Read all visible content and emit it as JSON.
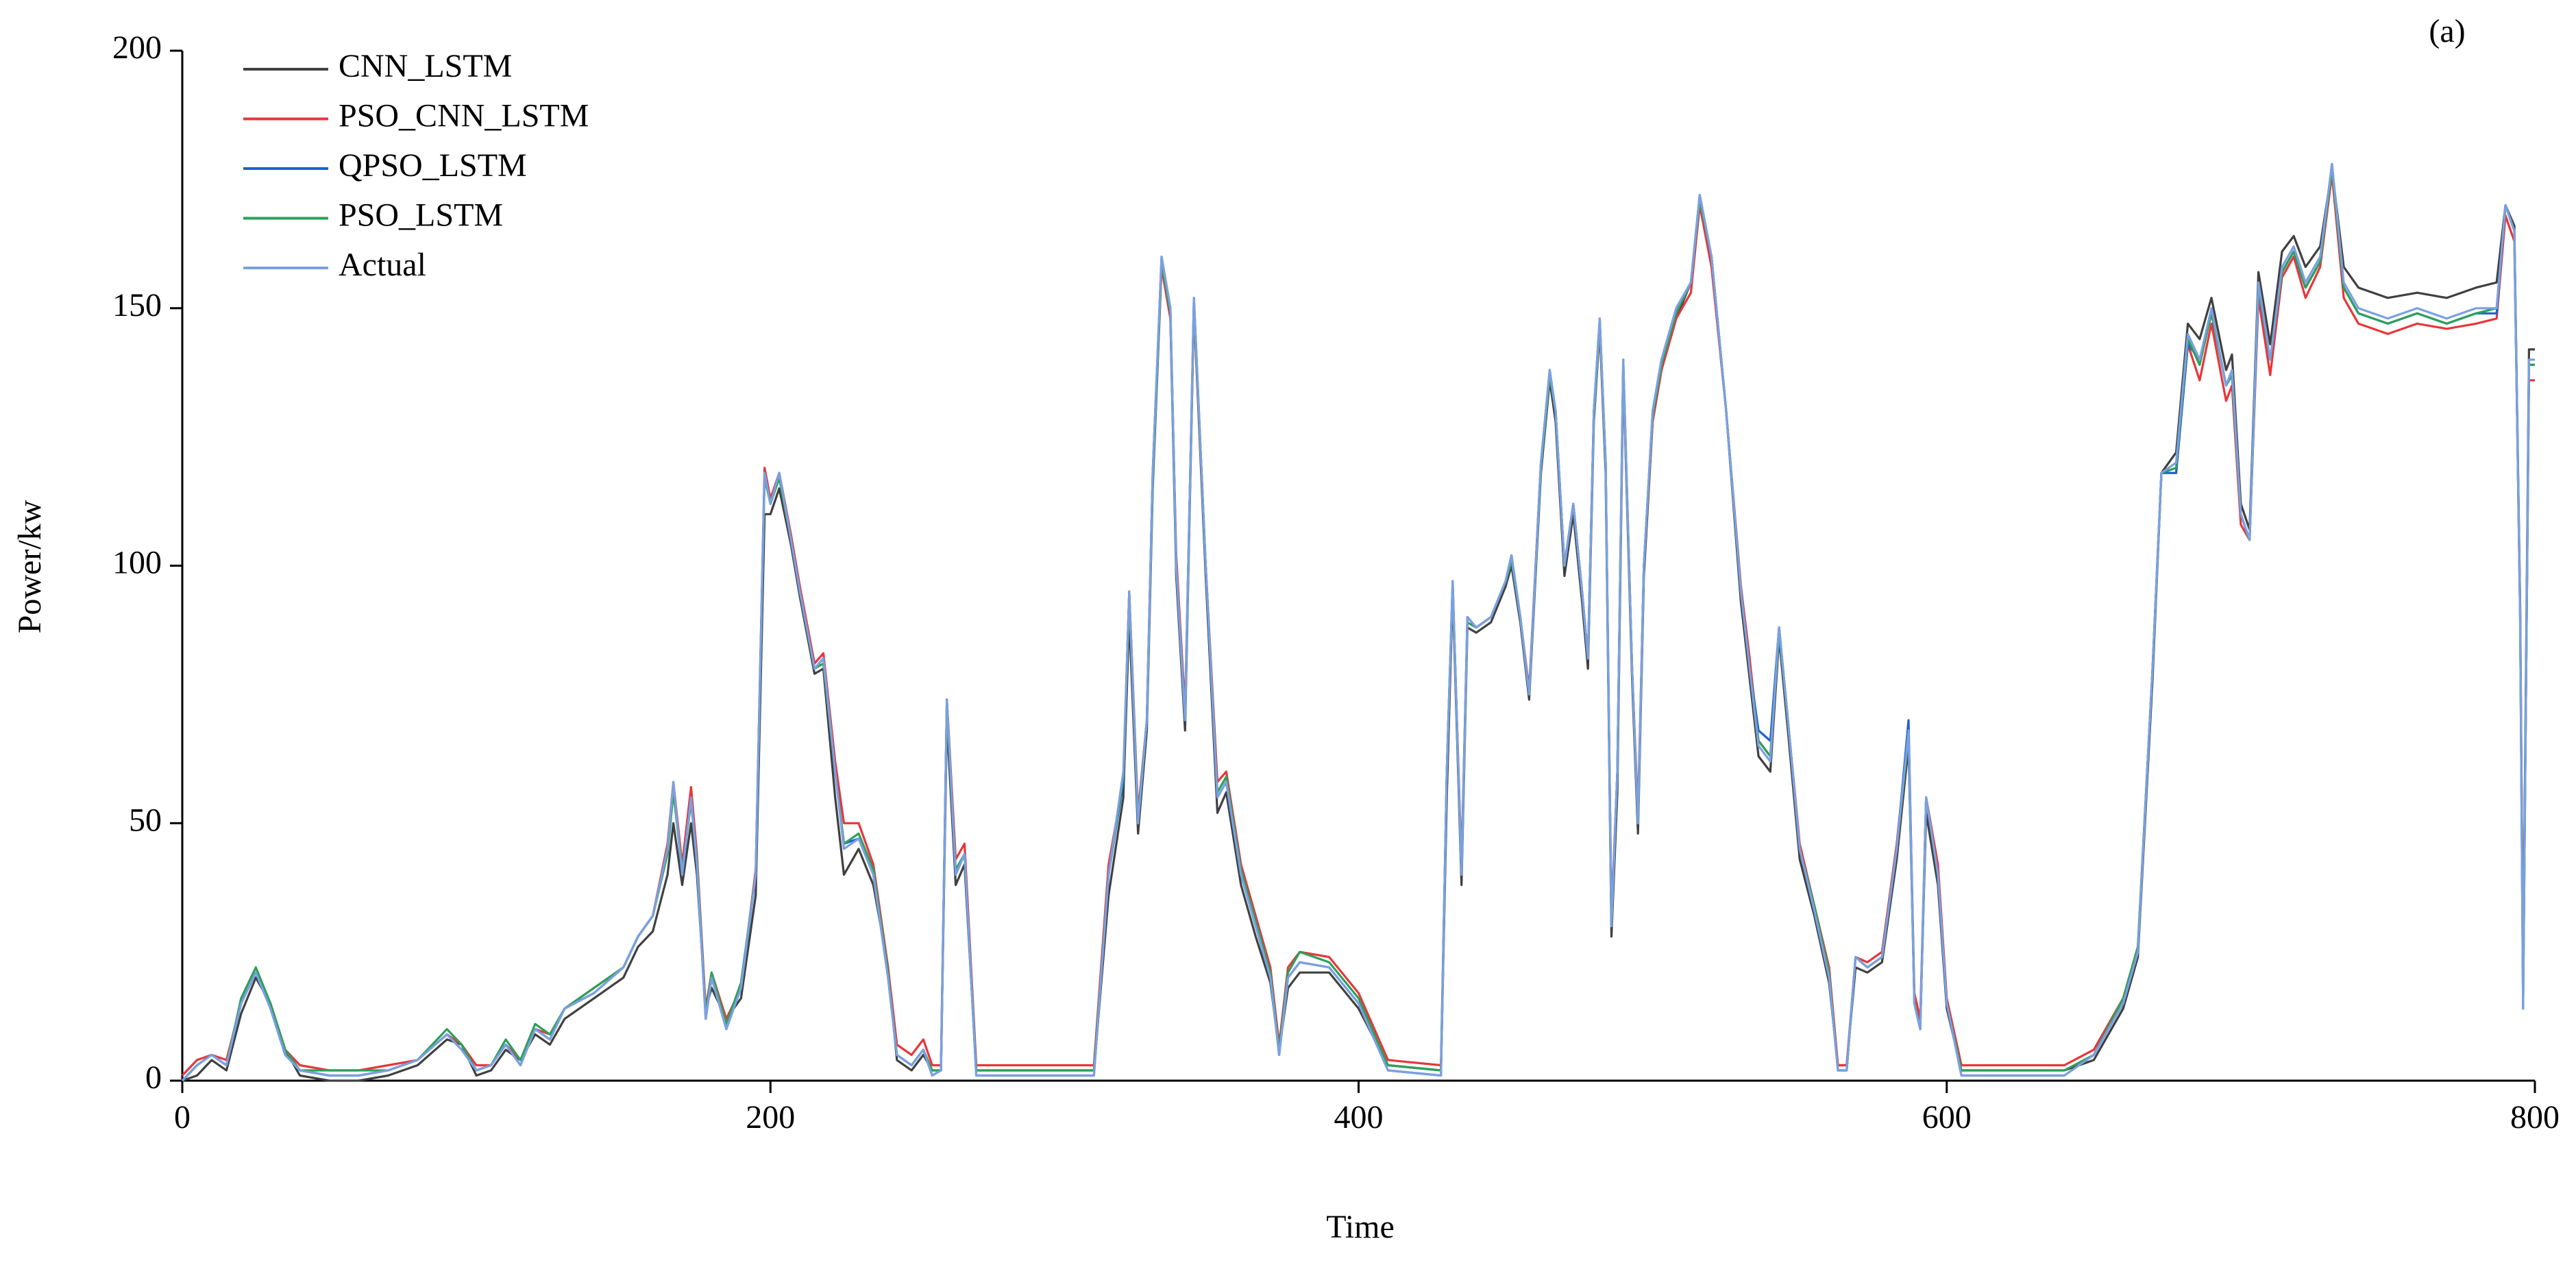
{
  "chart_data": {
    "type": "line",
    "annotation": "(a)",
    "x_label": "Time",
    "y_label": "Power/kw",
    "xlim": [
      0,
      800
    ],
    "xticks": [
      0,
      200,
      400,
      600,
      800
    ],
    "ylim": [
      0,
      200
    ],
    "yticks": [
      0,
      50,
      100,
      150,
      200
    ],
    "grid": false,
    "legend": "upper left",
    "x": [
      0,
      5,
      10,
      15,
      20,
      25,
      30,
      35,
      40,
      50,
      60,
      70,
      80,
      90,
      95,
      100,
      105,
      110,
      115,
      120,
      125,
      130,
      140,
      150,
      155,
      160,
      165,
      167,
      170,
      173,
      175,
      178,
      180,
      185,
      190,
      195,
      198,
      200,
      203,
      207,
      210,
      215,
      218,
      222,
      225,
      230,
      235,
      240,
      243,
      248,
      252,
      255,
      258,
      260,
      263,
      266,
      270,
      290,
      310,
      315,
      320,
      322,
      325,
      328,
      330,
      333,
      336,
      338,
      341,
      344,
      348,
      352,
      355,
      360,
      365,
      370,
      373,
      376,
      380,
      390,
      400,
      410,
      428,
      430,
      432,
      435,
      437,
      440,
      445,
      450,
      452,
      455,
      458,
      462,
      465,
      467,
      470,
      473,
      476,
      478,
      480,
      482,
      484,
      486,
      488,
      490,
      493,
      495,
      497,
      500,
      503,
      508,
      513,
      516,
      520,
      525,
      530,
      533,
      536,
      540,
      543,
      546,
      550,
      555,
      560,
      563,
      566,
      569,
      573,
      578,
      583,
      587,
      589,
      591,
      593,
      597,
      600,
      605,
      640,
      650,
      660,
      665,
      670,
      673,
      678,
      682,
      686,
      690,
      695,
      697,
      700,
      703,
      706,
      710,
      714,
      718,
      722,
      727,
      731,
      735,
      740,
      750,
      760,
      770,
      780,
      787,
      790,
      793,
      795,
      796,
      798,
      800
    ],
    "series": [
      {
        "name": "CNN_LSTM",
        "color": "#404040",
        "values": [
          0,
          1,
          4,
          2,
          13,
          20,
          15,
          6,
          1,
          0,
          0,
          1,
          3,
          8,
          7,
          1,
          2,
          6,
          4,
          9,
          7,
          12,
          16,
          20,
          26,
          29,
          40,
          50,
          38,
          50,
          40,
          14,
          18,
          12,
          16,
          36,
          110,
          110,
          115,
          104,
          94,
          79,
          80,
          55,
          40,
          45,
          38,
          22,
          4,
          2,
          5,
          2,
          2,
          70,
          38,
          42,
          2,
          2,
          2,
          36,
          55,
          90,
          48,
          68,
          115,
          158,
          148,
          98,
          68,
          150,
          98,
          52,
          56,
          38,
          28,
          19,
          6,
          18,
          21,
          21,
          14,
          3,
          2,
          55,
          95,
          38,
          88,
          87,
          89,
          96,
          100,
          89,
          74,
          118,
          136,
          128,
          98,
          110,
          93,
          80,
          128,
          146,
          118,
          28,
          56,
          138,
          78,
          48,
          98,
          128,
          138,
          148,
          155,
          170,
          160,
          130,
          93,
          78,
          63,
          60,
          86,
          68,
          43,
          32,
          19,
          3,
          3,
          22,
          21,
          23,
          43,
          65,
          16,
          11,
          52,
          38,
          14,
          2,
          2,
          4,
          14,
          24,
          78,
          118,
          122,
          147,
          144,
          152,
          138,
          141,
          112,
          107,
          157,
          143,
          161,
          164,
          158,
          162,
          177,
          158,
          154,
          152,
          153,
          152,
          154,
          155,
          170,
          166,
          92,
          20,
          142,
          142
        ]
      },
      {
        "name": "PSO_CNN_LSTM",
        "color": "#e8363a",
        "values": [
          1,
          4,
          5,
          4,
          15,
          21,
          15,
          6,
          3,
          2,
          2,
          3,
          4,
          9,
          7,
          3,
          3,
          7,
          4,
          10,
          9,
          14,
          18,
          22,
          28,
          32,
          46,
          58,
          42,
          57,
          44,
          14,
          21,
          12,
          18,
          41,
          119,
          113,
          118,
          106,
          96,
          81,
          83,
          62,
          50,
          50,
          42,
          22,
          7,
          5,
          8,
          3,
          3,
          74,
          43,
          46,
          3,
          3,
          3,
          42,
          58,
          95,
          52,
          70,
          118,
          158,
          148,
          102,
          72,
          150,
          100,
          58,
          60,
          42,
          32,
          22,
          7,
          22,
          25,
          24,
          17,
          4,
          3,
          60,
          96,
          42,
          90,
          88,
          90,
          97,
          102,
          90,
          76,
          120,
          137,
          130,
          100,
          112,
          95,
          82,
          130,
          146,
          120,
          32,
          60,
          138,
          80,
          52,
          100,
          128,
          138,
          148,
          153,
          170,
          158,
          130,
          96,
          82,
          66,
          63,
          88,
          70,
          46,
          34,
          22,
          3,
          3,
          24,
          23,
          25,
          46,
          68,
          17,
          12,
          55,
          42,
          16,
          3,
          3,
          6,
          16,
          26,
          80,
          118,
          118,
          143,
          136,
          147,
          132,
          135,
          108,
          105,
          152,
          137,
          156,
          160,
          152,
          158,
          176,
          152,
          147,
          145,
          147,
          146,
          147,
          148,
          168,
          163,
          92,
          18,
          136,
          136
        ]
      },
      {
        "name": "QPSO_LSTM",
        "color": "#1f5fd6",
        "values": [
          0,
          3,
          5,
          3,
          15,
          21,
          14,
          5,
          2,
          1,
          1,
          2,
          4,
          9,
          6,
          2,
          3,
          7,
          3,
          10,
          8,
          14,
          17,
          22,
          28,
          32,
          45,
          57,
          40,
          55,
          42,
          12,
          20,
          10,
          18,
          40,
          118,
          112,
          118,
          105,
          95,
          80,
          82,
          60,
          46,
          47,
          40,
          20,
          5,
          3,
          6,
          1,
          2,
          74,
          40,
          44,
          1,
          1,
          1,
          40,
          58,
          95,
          50,
          70,
          118,
          160,
          150,
          100,
          70,
          152,
          100,
          55,
          58,
          40,
          30,
          20,
          5,
          20,
          23,
          22,
          15,
          2,
          1,
          60,
          97,
          40,
          90,
          88,
          90,
          97,
          102,
          90,
          75,
          120,
          138,
          130,
          100,
          112,
          95,
          82,
          130,
          148,
          120,
          30,
          60,
          140,
          80,
          50,
          100,
          130,
          140,
          150,
          155,
          172,
          160,
          130,
          95,
          80,
          68,
          66,
          88,
          70,
          45,
          33,
          20,
          2,
          2,
          24,
          22,
          24,
          45,
          70,
          15,
          10,
          55,
          40,
          15,
          1,
          1,
          5,
          15,
          25,
          80,
          118,
          118,
          143,
          140,
          149,
          135,
          137,
          110,
          105,
          154,
          140,
          157,
          161,
          154,
          159,
          178,
          154,
          149,
          147,
          149,
          147,
          149,
          149,
          170,
          165,
          90,
          14,
          139,
          139
        ]
      },
      {
        "name": "PSO_LSTM",
        "color": "#2ca05a",
        "values": [
          0,
          3,
          5,
          3,
          16,
          22,
          15,
          6,
          2,
          2,
          2,
          2,
          4,
          10,
          7,
          2,
          3,
          8,
          4,
          11,
          9,
          14,
          18,
          22,
          28,
          32,
          44,
          56,
          41,
          54,
          43,
          13,
          21,
          11,
          19,
          40,
          117,
          112,
          117,
          105,
          95,
          80,
          81,
          60,
          46,
          48,
          41,
          21,
          5,
          3,
          6,
          2,
          2,
          73,
          41,
          44,
          2,
          2,
          2,
          40,
          59,
          94,
          51,
          70,
          116,
          159,
          149,
          100,
          70,
          151,
          100,
          56,
          59,
          41,
          31,
          21,
          6,
          21,
          25,
          23,
          16,
          3,
          2,
          60,
          96,
          40,
          89,
          88,
          90,
          97,
          101,
          90,
          75,
          119,
          137,
          130,
          100,
          112,
          95,
          82,
          129,
          147,
          120,
          30,
          60,
          139,
          80,
          50,
          100,
          129,
          139,
          149,
          155,
          171,
          160,
          130,
          95,
          80,
          66,
          63,
          87,
          70,
          45,
          34,
          21,
          2,
          2,
          24,
          22,
          24,
          45,
          67,
          15,
          10,
          55,
          40,
          15,
          2,
          2,
          5,
          16,
          26,
          80,
          118,
          119,
          144,
          139,
          149,
          135,
          137,
          110,
          105,
          154,
          140,
          157,
          161,
          154,
          159,
          177,
          154,
          149,
          147,
          149,
          147,
          149,
          150,
          170,
          165,
          90,
          15,
          139,
          139
        ]
      },
      {
        "name": "Actual",
        "color": "#7ba0e0",
        "values": [
          0,
          3,
          5,
          3,
          15,
          21,
          14,
          5,
          2,
          1,
          1,
          2,
          4,
          9,
          6,
          2,
          3,
          7,
          3,
          10,
          8,
          14,
          17,
          22,
          28,
          32,
          45,
          58,
          40,
          55,
          42,
          12,
          20,
          10,
          18,
          40,
          118,
          112,
          118,
          105,
          95,
          80,
          82,
          60,
          45,
          47,
          40,
          20,
          5,
          3,
          6,
          1,
          2,
          74,
          40,
          44,
          1,
          1,
          1,
          40,
          60,
          95,
          50,
          70,
          118,
          160,
          150,
          100,
          70,
          152,
          100,
          55,
          58,
          40,
          30,
          20,
          5,
          20,
          23,
          22,
          15,
          2,
          1,
          60,
          97,
          40,
          90,
          88,
          90,
          97,
          102,
          90,
          75,
          120,
          138,
          130,
          100,
          112,
          95,
          82,
          130,
          148,
          120,
          30,
          60,
          140,
          80,
          50,
          100,
          130,
          140,
          150,
          155,
          172,
          160,
          130,
          95,
          80,
          65,
          62,
          88,
          70,
          45,
          33,
          20,
          2,
          2,
          24,
          22,
          24,
          45,
          68,
          15,
          10,
          55,
          40,
          15,
          1,
          1,
          5,
          15,
          25,
          80,
          118,
          120,
          145,
          140,
          150,
          135,
          138,
          110,
          105,
          155,
          140,
          158,
          162,
          155,
          160,
          178,
          155,
          150,
          148,
          150,
          148,
          150,
          150,
          170,
          165,
          90,
          14,
          140,
          140
        ]
      }
    ]
  }
}
